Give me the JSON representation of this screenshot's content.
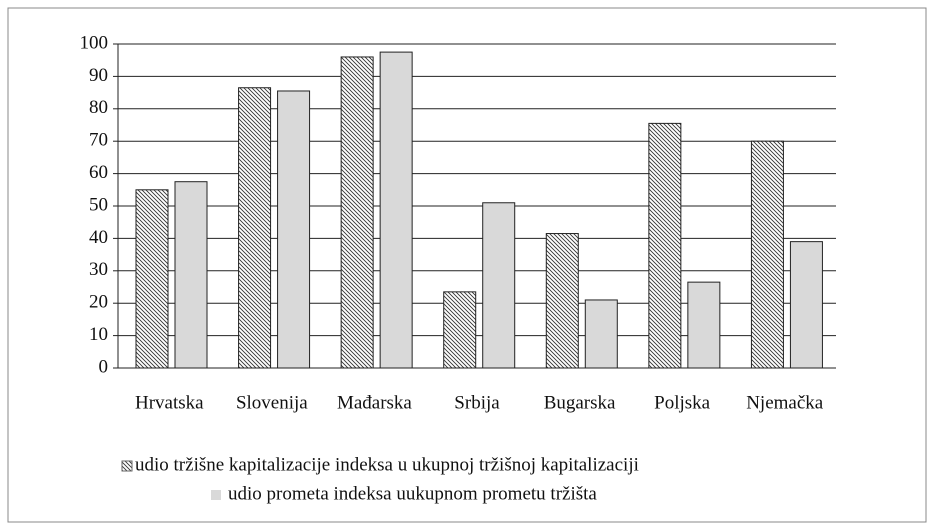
{
  "chart_data": {
    "type": "bar",
    "categories": [
      "Hrvatska",
      "Slovenija",
      "Mađarska",
      "Srbija",
      "Bugarska",
      "Poljska",
      "Njemačka"
    ],
    "series": [
      {
        "name": "udio tržišne kapitalizacije indeksa u ukupnoj tržišnoj kapitalizaciji",
        "color": "#333333",
        "pattern": "diagonal-hatch",
        "values": [
          55,
          86.5,
          96,
          23.5,
          41.5,
          75.5,
          70
        ]
      },
      {
        "name": "udio prometa indeksa uukupnom prometu tržišta",
        "color": "#d9d9d9",
        "values": [
          57.5,
          85.5,
          97.5,
          51,
          21,
          26.5,
          39
        ]
      }
    ],
    "ylim": [
      0,
      100
    ],
    "yticks": [
      0,
      10,
      20,
      30,
      40,
      50,
      60,
      70,
      80,
      90,
      100
    ],
    "grid": true
  }
}
